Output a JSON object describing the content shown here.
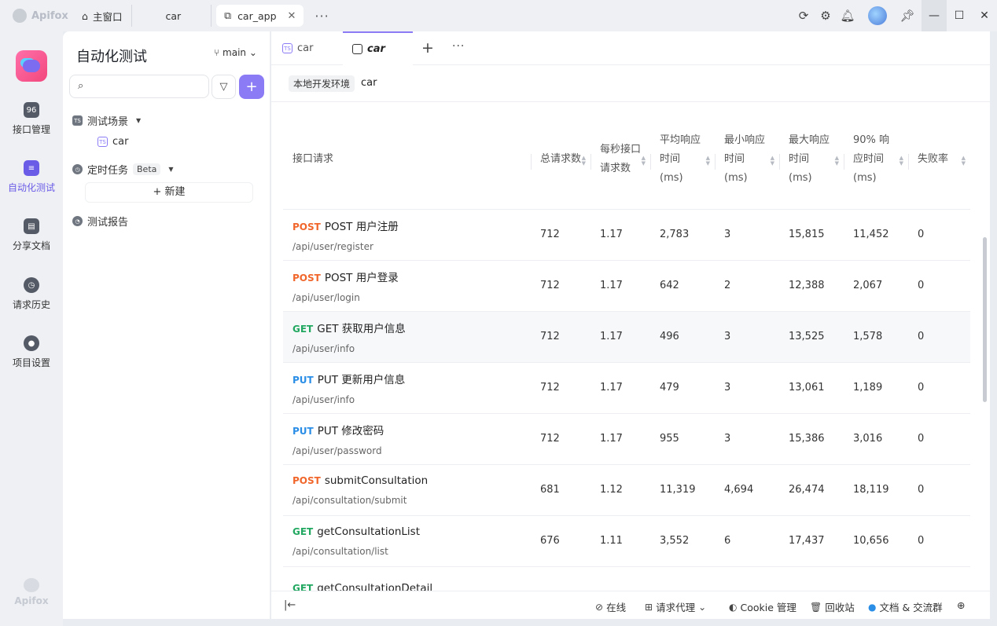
{
  "titlebar": {
    "brand": "Apifox",
    "tabs": [
      {
        "label": "主窗口",
        "icon": "home-icon"
      },
      {
        "label": "car",
        "icon": ""
      },
      {
        "label": "car_app",
        "icon": "external-link-icon",
        "active": true
      }
    ],
    "more": "···"
  },
  "rail": {
    "items": [
      {
        "label": "接口管理",
        "icon": "api-icon",
        "active": false
      },
      {
        "label": "自动化测试",
        "icon": "automation-icon",
        "active": true
      },
      {
        "label": "分享文档",
        "icon": "book-icon",
        "active": false
      },
      {
        "label": "请求历史",
        "icon": "clock-icon",
        "active": false
      },
      {
        "label": "项目设置",
        "icon": "gear-icon",
        "active": false
      }
    ],
    "footer": "Apifox"
  },
  "side": {
    "title": "自动化测试",
    "branch": "main",
    "tree": {
      "scenes": "测试场景",
      "scene_child": "car",
      "scheduled": "定时任务",
      "beta": "Beta",
      "new_label": "+ 新建",
      "reports": "测试报告"
    }
  },
  "main": {
    "tabs": [
      {
        "label": "car",
        "active": false
      },
      {
        "label": "car",
        "active": true
      }
    ],
    "env": "本地开发环境",
    "env_name": "car"
  },
  "table": {
    "headers": [
      "接口请求",
      "总请求数",
      "每秒接口请求数",
      "平均响应时间 (ms)",
      "最小响应时间 (ms)",
      "最大响应时间 (ms)",
      "90% 响应时间 (ms)",
      "失败率"
    ],
    "rows": [
      {
        "method": "POST",
        "name": "POST 用户注册",
        "path": "/api/user/register",
        "total": "712",
        "rps": "1.17",
        "avg": "2,783",
        "min": "3",
        "max": "15,815",
        "p90": "11,452",
        "fail": "0"
      },
      {
        "method": "POST",
        "name": "POST 用户登录",
        "path": "/api/user/login",
        "total": "712",
        "rps": "1.17",
        "avg": "642",
        "min": "2",
        "max": "12,388",
        "p90": "2,067",
        "fail": "0"
      },
      {
        "method": "GET",
        "name": "GET 获取用户信息",
        "path": "/api/user/info",
        "total": "712",
        "rps": "1.17",
        "avg": "496",
        "min": "3",
        "max": "13,525",
        "p90": "1,578",
        "fail": "0"
      },
      {
        "method": "PUT",
        "name": "PUT 更新用户信息",
        "path": "/api/user/info",
        "total": "712",
        "rps": "1.17",
        "avg": "479",
        "min": "3",
        "max": "13,061",
        "p90": "1,189",
        "fail": "0"
      },
      {
        "method": "PUT",
        "name": "PUT 修改密码",
        "path": "/api/user/password",
        "total": "712",
        "rps": "1.17",
        "avg": "955",
        "min": "3",
        "max": "15,386",
        "p90": "3,016",
        "fail": "0"
      },
      {
        "method": "POST",
        "name": "submitConsultation",
        "path": "/api/consultation/submit",
        "total": "681",
        "rps": "1.12",
        "avg": "11,319",
        "min": "4,694",
        "max": "26,474",
        "p90": "18,119",
        "fail": "0"
      },
      {
        "method": "GET",
        "name": "getConsultationList",
        "path": "/api/consultation/list",
        "total": "676",
        "rps": "1.11",
        "avg": "3,552",
        "min": "6",
        "max": "17,437",
        "p90": "10,656",
        "fail": "0"
      },
      {
        "method": "GET",
        "name": "getConsultationDetail",
        "path": "",
        "total": "",
        "rps": "",
        "avg": "",
        "min": "",
        "max": "",
        "p90": "",
        "fail": ""
      }
    ]
  },
  "footer": {
    "online": "在线",
    "proxy": "请求代理",
    "cookie": "Cookie 管理",
    "trash": "回收站",
    "community": "文档 & 交流群"
  },
  "colors": {
    "accent": "#8b7cf6",
    "post": "#f0662b",
    "get": "#22a860",
    "put": "#2b8ee6"
  }
}
